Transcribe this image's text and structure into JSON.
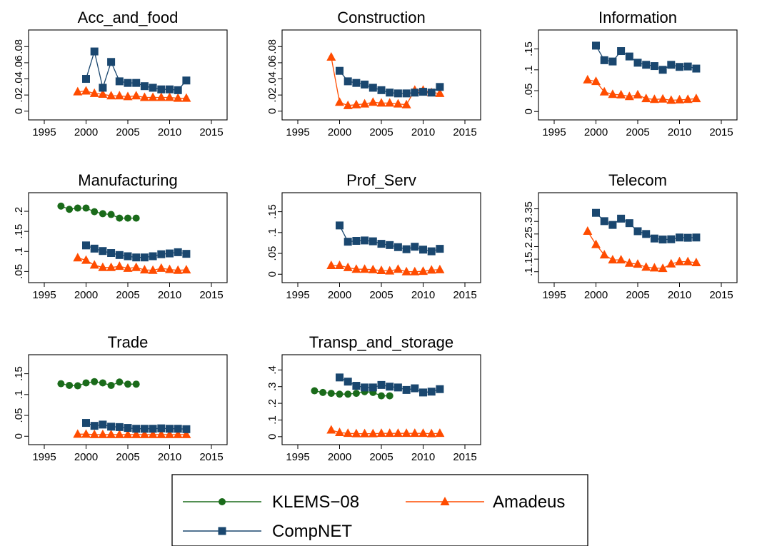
{
  "legend": {
    "entries": [
      {
        "series": "KLEMS-08",
        "label": "KLEMS−08",
        "color": "#1a6b1a",
        "marker": "circle"
      },
      {
        "series": "Amadeus",
        "label": "Amadeus",
        "color": "#ff4c00",
        "marker": "triangle"
      },
      {
        "series": "CompNET",
        "label": "CompNET",
        "color": "#1a476f",
        "marker": "square"
      }
    ]
  },
  "chart_data": [
    {
      "type": "line",
      "title": "Acc_and_food",
      "xlim": [
        1995,
        2015
      ],
      "xticks": [
        1995,
        2000,
        2005,
        2010,
        2015
      ],
      "ylim": [
        -0.002,
        0.09
      ],
      "yticks": [
        0,
        0.02,
        0.04,
        0.06,
        0.08
      ],
      "ytick_labels": [
        "0",
        ".02",
        ".04",
        ".06",
        ".08"
      ],
      "series": [
        {
          "name": "CompNET",
          "x": [
            2000,
            2001,
            2002,
            2003,
            2004,
            2005,
            2006,
            2007,
            2008,
            2009,
            2010,
            2011,
            2012
          ],
          "values": [
            0.04,
            0.074,
            0.029,
            0.061,
            0.037,
            0.035,
            0.035,
            0.031,
            0.029,
            0.027,
            0.027,
            0.026,
            0.038
          ]
        },
        {
          "name": "Amadeus",
          "x": [
            1999,
            2000,
            2001,
            2002,
            2003,
            2004,
            2005,
            2006,
            2007,
            2008,
            2009,
            2010,
            2011,
            2012
          ],
          "values": [
            0.024,
            0.025,
            0.022,
            0.021,
            0.019,
            0.019,
            0.018,
            0.019,
            0.017,
            0.017,
            0.017,
            0.017,
            0.016,
            0.016
          ]
        }
      ]
    },
    {
      "type": "line",
      "title": "Construction",
      "xlim": [
        1995,
        2015
      ],
      "xticks": [
        1995,
        2000,
        2005,
        2010,
        2015
      ],
      "ylim": [
        -0.002,
        0.09
      ],
      "yticks": [
        0,
        0.02,
        0.04,
        0.06,
        0.08
      ],
      "ytick_labels": [
        "0",
        ".02",
        ".04",
        ".06",
        ".08"
      ],
      "series": [
        {
          "name": "CompNET",
          "x": [
            2000,
            2001,
            2002,
            2003,
            2004,
            2005,
            2006,
            2007,
            2008,
            2009,
            2010,
            2011,
            2012
          ],
          "values": [
            0.05,
            0.037,
            0.035,
            0.033,
            0.029,
            0.026,
            0.023,
            0.022,
            0.022,
            0.023,
            0.024,
            0.023,
            0.03
          ]
        },
        {
          "name": "Amadeus",
          "x": [
            1999,
            2000,
            2001,
            2002,
            2003,
            2004,
            2005,
            2006,
            2007,
            2008,
            2009,
            2010,
            2011,
            2012
          ],
          "values": [
            0.067,
            0.011,
            0.007,
            0.008,
            0.009,
            0.011,
            0.01,
            0.01,
            0.009,
            0.008,
            0.026,
            0.026,
            0.023,
            0.022
          ]
        }
      ]
    },
    {
      "type": "line",
      "title": "Information",
      "xlim": [
        1995,
        2015
      ],
      "xticks": [
        1995,
        2000,
        2005,
        2010,
        2015
      ],
      "ylim": [
        -0.003,
        0.175
      ],
      "yticks": [
        0,
        0.05,
        0.1,
        0.15
      ],
      "ytick_labels": [
        "0",
        ".05",
        ".1",
        ".15"
      ],
      "series": [
        {
          "name": "CompNET",
          "x": [
            2000,
            2001,
            2002,
            2003,
            2004,
            2005,
            2006,
            2007,
            2008,
            2009,
            2010,
            2011,
            2012
          ],
          "values": [
            0.158,
            0.123,
            0.12,
            0.145,
            0.132,
            0.117,
            0.112,
            0.109,
            0.1,
            0.112,
            0.107,
            0.108,
            0.103
          ]
        },
        {
          "name": "Amadeus",
          "x": [
            1999,
            2000,
            2001,
            2002,
            2003,
            2004,
            2005,
            2006,
            2007,
            2008,
            2009,
            2010,
            2011,
            2012
          ],
          "values": [
            0.076,
            0.072,
            0.047,
            0.041,
            0.04,
            0.036,
            0.04,
            0.031,
            0.029,
            0.03,
            0.027,
            0.028,
            0.029,
            0.031
          ]
        }
      ]
    },
    {
      "type": "line",
      "title": "Manufacturing",
      "xlim": [
        1995,
        2015
      ],
      "xticks": [
        1995,
        2000,
        2005,
        2010,
        2015
      ],
      "ylim": [
        0.04,
        0.225
      ],
      "yticks": [
        0.05,
        0.1,
        0.15,
        0.2
      ],
      "ytick_labels": [
        ".05",
        ".1",
        ".15",
        ".2"
      ],
      "series": [
        {
          "name": "KLEMS-08",
          "x": [
            1997,
            1998,
            1999,
            2000,
            2001,
            2002,
            2003,
            2004,
            2005,
            2006
          ],
          "values": [
            0.213,
            0.205,
            0.208,
            0.208,
            0.199,
            0.194,
            0.192,
            0.183,
            0.183,
            0.183
          ]
        },
        {
          "name": "CompNET",
          "x": [
            2000,
            2001,
            2002,
            2003,
            2004,
            2005,
            2006,
            2007,
            2008,
            2009,
            2010,
            2011,
            2012
          ],
          "values": [
            0.115,
            0.107,
            0.101,
            0.096,
            0.091,
            0.088,
            0.085,
            0.085,
            0.088,
            0.093,
            0.095,
            0.098,
            0.094
          ]
        },
        {
          "name": "Amadeus",
          "x": [
            1999,
            2000,
            2001,
            2002,
            2003,
            2004,
            2005,
            2006,
            2007,
            2008,
            2009,
            2010,
            2011,
            2012
          ],
          "values": [
            0.084,
            0.078,
            0.066,
            0.06,
            0.06,
            0.063,
            0.058,
            0.06,
            0.054,
            0.053,
            0.058,
            0.055,
            0.053,
            0.054
          ]
        }
      ]
    },
    {
      "type": "line",
      "title": "Prof_Serv",
      "xlim": [
        1995,
        2015
      ],
      "xticks": [
        1995,
        2000,
        2005,
        2010,
        2015
      ],
      "ylim": [
        -0.003,
        0.175
      ],
      "yticks": [
        0,
        0.05,
        0.1,
        0.15
      ],
      "ytick_labels": [
        "0",
        ".05",
        ".1",
        ".15"
      ],
      "series": [
        {
          "name": "CompNET",
          "x": [
            2000,
            2001,
            2002,
            2003,
            2004,
            2005,
            2006,
            2007,
            2008,
            2009,
            2010,
            2011,
            2012
          ],
          "values": [
            0.117,
            0.078,
            0.08,
            0.081,
            0.079,
            0.073,
            0.07,
            0.065,
            0.06,
            0.066,
            0.059,
            0.055,
            0.061
          ]
        },
        {
          "name": "Amadeus",
          "x": [
            1999,
            2000,
            2001,
            2002,
            2003,
            2004,
            2005,
            2006,
            2007,
            2008,
            2009,
            2010,
            2011,
            2012
          ],
          "values": [
            0.021,
            0.021,
            0.016,
            0.012,
            0.012,
            0.011,
            0.009,
            0.008,
            0.012,
            0.006,
            0.006,
            0.007,
            0.01,
            0.011
          ]
        }
      ]
    },
    {
      "type": "line",
      "title": "Telecom",
      "xlim": [
        1995,
        2015
      ],
      "xticks": [
        1995,
        2000,
        2005,
        2010,
        2015
      ],
      "ylim": [
        0.085,
        0.38
      ],
      "yticks": [
        0.1,
        0.15,
        0.2,
        0.25,
        0.3,
        0.35
      ],
      "ytick_labels": [
        ".1",
        ".15",
        ".2",
        ".25",
        ".3",
        ".35"
      ],
      "series": [
        {
          "name": "CompNET",
          "x": [
            2000,
            2001,
            2002,
            2003,
            2004,
            2005,
            2006,
            2007,
            2008,
            2009,
            2010,
            2011,
            2012
          ],
          "values": [
            0.334,
            0.301,
            0.286,
            0.311,
            0.293,
            0.261,
            0.25,
            0.232,
            0.228,
            0.229,
            0.236,
            0.235,
            0.236
          ]
        },
        {
          "name": "Amadeus",
          "x": [
            1999,
            2000,
            2001,
            2002,
            2003,
            2004,
            2005,
            2006,
            2007,
            2008,
            2009,
            2010,
            2011,
            2012
          ],
          "values": [
            0.261,
            0.208,
            0.167,
            0.147,
            0.147,
            0.134,
            0.13,
            0.118,
            0.115,
            0.113,
            0.131,
            0.14,
            0.14,
            0.136
          ]
        }
      ]
    },
    {
      "type": "line",
      "title": "Trade",
      "xlim": [
        1995,
        2015
      ],
      "xticks": [
        1995,
        2000,
        2005,
        2010,
        2015
      ],
      "ylim": [
        -0.003,
        0.175
      ],
      "yticks": [
        0,
        0.05,
        0.1,
        0.15
      ],
      "ytick_labels": [
        "0",
        ".05",
        ".1",
        ".15"
      ],
      "series": [
        {
          "name": "KLEMS-08",
          "x": [
            1997,
            1998,
            1999,
            2000,
            2001,
            2002,
            2003,
            2004,
            2005,
            2006
          ],
          "values": [
            0.126,
            0.122,
            0.121,
            0.128,
            0.131,
            0.128,
            0.122,
            0.13,
            0.125,
            0.125
          ]
        },
        {
          "name": "CompNET",
          "x": [
            2000,
            2001,
            2002,
            2003,
            2004,
            2005,
            2006,
            2007,
            2008,
            2009,
            2010,
            2011,
            2012
          ],
          "values": [
            0.032,
            0.025,
            0.028,
            0.023,
            0.022,
            0.02,
            0.018,
            0.018,
            0.018,
            0.019,
            0.018,
            0.018,
            0.017
          ]
        },
        {
          "name": "Amadeus",
          "x": [
            1999,
            2000,
            2001,
            2002,
            2003,
            2004,
            2005,
            2006,
            2007,
            2008,
            2009,
            2010,
            2011,
            2012
          ],
          "values": [
            0.005,
            0.005,
            0.004,
            0.004,
            0.004,
            0.004,
            0.004,
            0.004,
            0.004,
            0.004,
            0.004,
            0.004,
            0.004,
            0.004
          ]
        }
      ]
    },
    {
      "type": "line",
      "title": "Transp_and_storage",
      "xlim": [
        1995,
        2015
      ],
      "xticks": [
        1995,
        2000,
        2005,
        2010,
        2015
      ],
      "ylim": [
        -0.005,
        0.44
      ],
      "yticks": [
        0,
        0.1,
        0.2,
        0.3,
        0.4
      ],
      "ytick_labels": [
        "0",
        ".1",
        ".2",
        ".3",
        ".4"
      ],
      "series": [
        {
          "name": "KLEMS-08",
          "x": [
            1997,
            1998,
            1999,
            2000,
            2001,
            2002,
            2003,
            2004,
            2005,
            2006
          ],
          "values": [
            0.275,
            0.265,
            0.26,
            0.255,
            0.255,
            0.26,
            0.27,
            0.265,
            0.245,
            0.245
          ]
        },
        {
          "name": "CompNET",
          "x": [
            2000,
            2001,
            2002,
            2003,
            2004,
            2005,
            2006,
            2007,
            2008,
            2009,
            2010,
            2011,
            2012
          ],
          "values": [
            0.355,
            0.33,
            0.305,
            0.295,
            0.295,
            0.31,
            0.3,
            0.295,
            0.28,
            0.29,
            0.265,
            0.27,
            0.285
          ]
        },
        {
          "name": "Amadeus",
          "x": [
            1999,
            2000,
            2001,
            2002,
            2003,
            2004,
            2005,
            2006,
            2007,
            2008,
            2009,
            2010,
            2011,
            2012
          ],
          "values": [
            0.04,
            0.025,
            0.02,
            0.018,
            0.018,
            0.018,
            0.02,
            0.02,
            0.02,
            0.02,
            0.02,
            0.02,
            0.018,
            0.02
          ]
        }
      ]
    }
  ]
}
